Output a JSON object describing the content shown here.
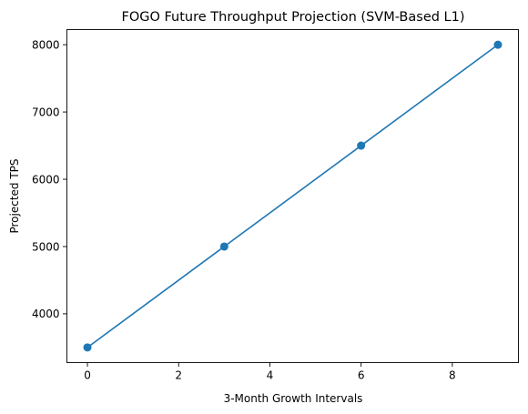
{
  "chart_data": {
    "type": "line",
    "title": "FOGO Future Throughput Projection (SVM-Based L1)",
    "xlabel": "3-Month Growth Intervals",
    "ylabel": "Projected TPS",
    "xlim": [
      -0.45,
      9.45
    ],
    "ylim": [
      3275,
      8225
    ],
    "xticks": [
      0,
      2,
      4,
      6,
      8
    ],
    "yticks": [
      4000,
      5000,
      6000,
      7000,
      8000
    ],
    "grid": false,
    "series": [
      {
        "color": "#1f77b4",
        "marker": "circle",
        "x": [
          0,
          3,
          6,
          9
        ],
        "y": [
          3500,
          5000,
          6500,
          8000
        ]
      }
    ]
  }
}
